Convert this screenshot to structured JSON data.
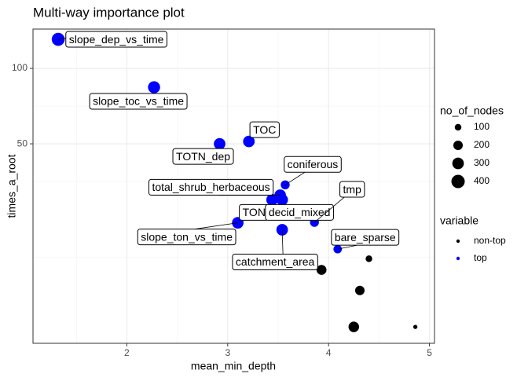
{
  "chart_data": {
    "type": "scatter",
    "title": "Multi-way importance plot",
    "x_label": "mean_min_depth",
    "y_label": "times_a_root",
    "xlim": [
      1.07,
      5.05
    ],
    "xticks": [
      2,
      3,
      4,
      5
    ],
    "ylim": [
      8,
      143.5
    ],
    "yticks": [
      50,
      100
    ],
    "log_y": true,
    "grid": true,
    "size_legend_title": "no_of_nodes",
    "size_legend": [
      100,
      200,
      300,
      400
    ],
    "color_legend_title": "variable",
    "series": [
      {
        "name": "non-top",
        "color": "#000000",
        "x": [
          4.4,
          3.93,
          4.31,
          4.25,
          4.86
        ],
        "values": [
          17.4,
          15.7,
          13.0,
          9.3,
          9.3
        ],
        "sizes": [
          100,
          220,
          200,
          250,
          40
        ]
      },
      {
        "name": "top",
        "color": "#0000ff",
        "labels": [
          "slope_dep_vs_time",
          "slope_toc_vs_time",
          "TOC",
          "TOTN_dep",
          "coniferous",
          "total_shrub_herbaceous",
          "TON",
          "decid_mixed",
          "tmp",
          "slope_ton_vs_time",
          "catchment_area",
          "bare_sparse"
        ],
        "x": [
          1.32,
          2.27,
          3.21,
          2.92,
          3.57,
          3.52,
          3.44,
          3.54,
          3.86,
          3.1,
          3.54,
          4.09
        ],
        "values": [
          130.6,
          84.1,
          51.1,
          50,
          34.3,
          31.2,
          29.9,
          29.9,
          24.3,
          24.2,
          22.7,
          19.0
        ],
        "sizes": [
          380,
          330,
          300,
          300,
          180,
          300,
          300,
          300,
          180,
          300,
          300,
          160
        ]
      }
    ]
  }
}
